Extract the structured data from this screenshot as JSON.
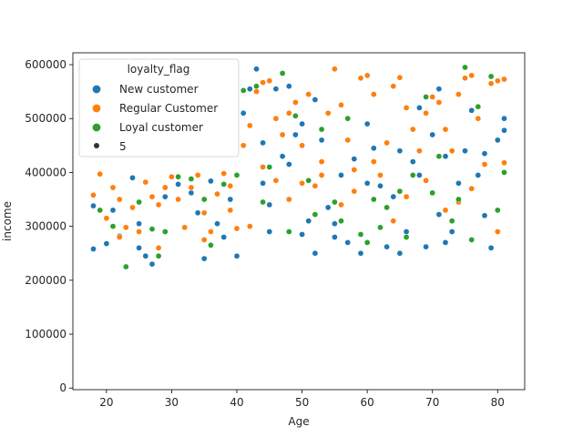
{
  "chart_data": {
    "type": "scatter",
    "xlabel": "Age",
    "ylabel": "income",
    "xlim": [
      14.85,
      84.15
    ],
    "ylim": [
      -3000,
      622000
    ],
    "x_ticks": [
      20,
      30,
      40,
      50,
      60,
      70,
      80
    ],
    "y_ticks": [
      0,
      100000,
      200000,
      300000,
      400000,
      500000,
      600000
    ],
    "x_tick_labels": [
      "20",
      "30",
      "40",
      "50",
      "60",
      "70",
      "80"
    ],
    "y_tick_labels": [
      "0",
      "100000",
      "200000",
      "300000",
      "400000",
      "500000",
      "600000"
    ],
    "legend": {
      "title": "loyalty_flag",
      "placement": "upper-left",
      "size_label": "5"
    },
    "series": [
      {
        "name": "New customer",
        "color": "#1f77b4",
        "points": [
          [
            18,
            258000
          ],
          [
            18,
            338000
          ],
          [
            20,
            268000
          ],
          [
            21,
            330000
          ],
          [
            22,
            282000
          ],
          [
            24,
            390000
          ],
          [
            25,
            305000
          ],
          [
            26,
            245000
          ],
          [
            27,
            230000
          ],
          [
            29,
            355000
          ],
          [
            31,
            378000
          ],
          [
            33,
            362000
          ],
          [
            34,
            325000
          ],
          [
            36,
            384000
          ],
          [
            37,
            305000
          ],
          [
            38,
            280000
          ],
          [
            39,
            350000
          ],
          [
            40,
            245000
          ],
          [
            41,
            510000
          ],
          [
            42,
            555000
          ],
          [
            43,
            592000
          ],
          [
            44,
            455000
          ],
          [
            45,
            340000
          ],
          [
            46,
            555000
          ],
          [
            47,
            430000
          ],
          [
            48,
            560000
          ],
          [
            49,
            470000
          ],
          [
            50,
            490000
          ],
          [
            50,
            285000
          ],
          [
            51,
            310000
          ],
          [
            52,
            250000
          ],
          [
            53,
            460000
          ],
          [
            54,
            335000
          ],
          [
            55,
            305000
          ],
          [
            56,
            395000
          ],
          [
            57,
            270000
          ],
          [
            58,
            425000
          ],
          [
            59,
            250000
          ],
          [
            60,
            380000
          ],
          [
            61,
            445000
          ],
          [
            62,
            375000
          ],
          [
            63,
            262000
          ],
          [
            64,
            355000
          ],
          [
            65,
            440000
          ],
          [
            66,
            290000
          ],
          [
            67,
            420000
          ],
          [
            68,
            395000
          ],
          [
            69,
            262000
          ],
          [
            70,
            470000
          ],
          [
            71,
            555000
          ],
          [
            71,
            322000
          ],
          [
            72,
            430000
          ],
          [
            73,
            290000
          ],
          [
            74,
            380000
          ],
          [
            75,
            440000
          ],
          [
            76,
            515000
          ],
          [
            77,
            395000
          ],
          [
            78,
            320000
          ],
          [
            79,
            260000
          ],
          [
            80,
            460000
          ],
          [
            81,
            478000
          ],
          [
            81,
            500000
          ],
          [
            45,
            290000
          ],
          [
            55,
            280000
          ],
          [
            65,
            250000
          ],
          [
            35,
            240000
          ],
          [
            25,
            260000
          ],
          [
            60,
            490000
          ],
          [
            48,
            415000
          ],
          [
            72,
            270000
          ],
          [
            78,
            435000
          ],
          [
            68,
            520000
          ],
          [
            52,
            535000
          ],
          [
            44,
            380000
          ]
        ]
      },
      {
        "name": "Regular Customer",
        "color": "#ff7f0e",
        "points": [
          [
            18,
            358000
          ],
          [
            19,
            397000
          ],
          [
            20,
            315000
          ],
          [
            21,
            372000
          ],
          [
            22,
            350000
          ],
          [
            23,
            298000
          ],
          [
            24,
            335000
          ],
          [
            25,
            290000
          ],
          [
            26,
            382000
          ],
          [
            27,
            355000
          ],
          [
            28,
            340000
          ],
          [
            29,
            372000
          ],
          [
            30,
            392000
          ],
          [
            31,
            350000
          ],
          [
            32,
            298000
          ],
          [
            33,
            372000
          ],
          [
            34,
            395000
          ],
          [
            35,
            325000
          ],
          [
            36,
            290000
          ],
          [
            37,
            360000
          ],
          [
            38,
            398000
          ],
          [
            39,
            375000
          ],
          [
            40,
            296000
          ],
          [
            41,
            450000
          ],
          [
            42,
            487000
          ],
          [
            43,
            550000
          ],
          [
            44,
            567000
          ],
          [
            45,
            570000
          ],
          [
            46,
            500000
          ],
          [
            47,
            470000
          ],
          [
            48,
            510000
          ],
          [
            49,
            530000
          ],
          [
            50,
            450000
          ],
          [
            51,
            545000
          ],
          [
            52,
            375000
          ],
          [
            53,
            420000
          ],
          [
            54,
            510000
          ],
          [
            55,
            592000
          ],
          [
            56,
            525000
          ],
          [
            57,
            460000
          ],
          [
            58,
            405000
          ],
          [
            59,
            575000
          ],
          [
            60,
            580000
          ],
          [
            61,
            545000
          ],
          [
            62,
            395000
          ],
          [
            63,
            455000
          ],
          [
            64,
            560000
          ],
          [
            65,
            576000
          ],
          [
            66,
            520000
          ],
          [
            67,
            480000
          ],
          [
            68,
            440000
          ],
          [
            69,
            510000
          ],
          [
            70,
            540000
          ],
          [
            71,
            530000
          ],
          [
            72,
            480000
          ],
          [
            73,
            440000
          ],
          [
            74,
            545000
          ],
          [
            75,
            575000
          ],
          [
            76,
            580000
          ],
          [
            77,
            500000
          ],
          [
            78,
            415000
          ],
          [
            79,
            565000
          ],
          [
            80,
            570000
          ],
          [
            81,
            573000
          ],
          [
            81,
            418000
          ],
          [
            22,
            280000
          ],
          [
            28,
            260000
          ],
          [
            35,
            275000
          ],
          [
            42,
            300000
          ],
          [
            48,
            350000
          ],
          [
            56,
            340000
          ],
          [
            64,
            310000
          ],
          [
            72,
            330000
          ],
          [
            80,
            290000
          ],
          [
            46,
            385000
          ],
          [
            58,
            365000
          ],
          [
            66,
            355000
          ],
          [
            74,
            345000
          ],
          [
            39,
            330000
          ],
          [
            53,
            395000
          ],
          [
            61,
            420000
          ],
          [
            69,
            385000
          ],
          [
            76,
            370000
          ],
          [
            44,
            410000
          ],
          [
            50,
            380000
          ]
        ]
      },
      {
        "name": "Loyal customer",
        "color": "#2ca02c",
        "points": [
          [
            19,
            330000
          ],
          [
            21,
            300000
          ],
          [
            23,
            225000
          ],
          [
            25,
            345000
          ],
          [
            27,
            295000
          ],
          [
            29,
            290000
          ],
          [
            31,
            392000
          ],
          [
            33,
            388000
          ],
          [
            35,
            350000
          ],
          [
            38,
            378000
          ],
          [
            40,
            395000
          ],
          [
            41,
            552000
          ],
          [
            43,
            560000
          ],
          [
            45,
            410000
          ],
          [
            47,
            584000
          ],
          [
            49,
            505000
          ],
          [
            51,
            385000
          ],
          [
            53,
            480000
          ],
          [
            55,
            345000
          ],
          [
            57,
            500000
          ],
          [
            59,
            285000
          ],
          [
            61,
            350000
          ],
          [
            63,
            335000
          ],
          [
            65,
            365000
          ],
          [
            67,
            395000
          ],
          [
            69,
            540000
          ],
          [
            71,
            430000
          ],
          [
            73,
            310000
          ],
          [
            75,
            595000
          ],
          [
            77,
            522000
          ],
          [
            79,
            578000
          ],
          [
            81,
            400000
          ],
          [
            80,
            330000
          ],
          [
            44,
            345000
          ],
          [
            48,
            290000
          ],
          [
            56,
            310000
          ],
          [
            62,
            298000
          ],
          [
            70,
            362000
          ],
          [
            76,
            275000
          ],
          [
            36,
            265000
          ],
          [
            28,
            245000
          ],
          [
            52,
            322000
          ],
          [
            60,
            270000
          ],
          [
            66,
            280000
          ],
          [
            74,
            350000
          ]
        ]
      }
    ]
  }
}
